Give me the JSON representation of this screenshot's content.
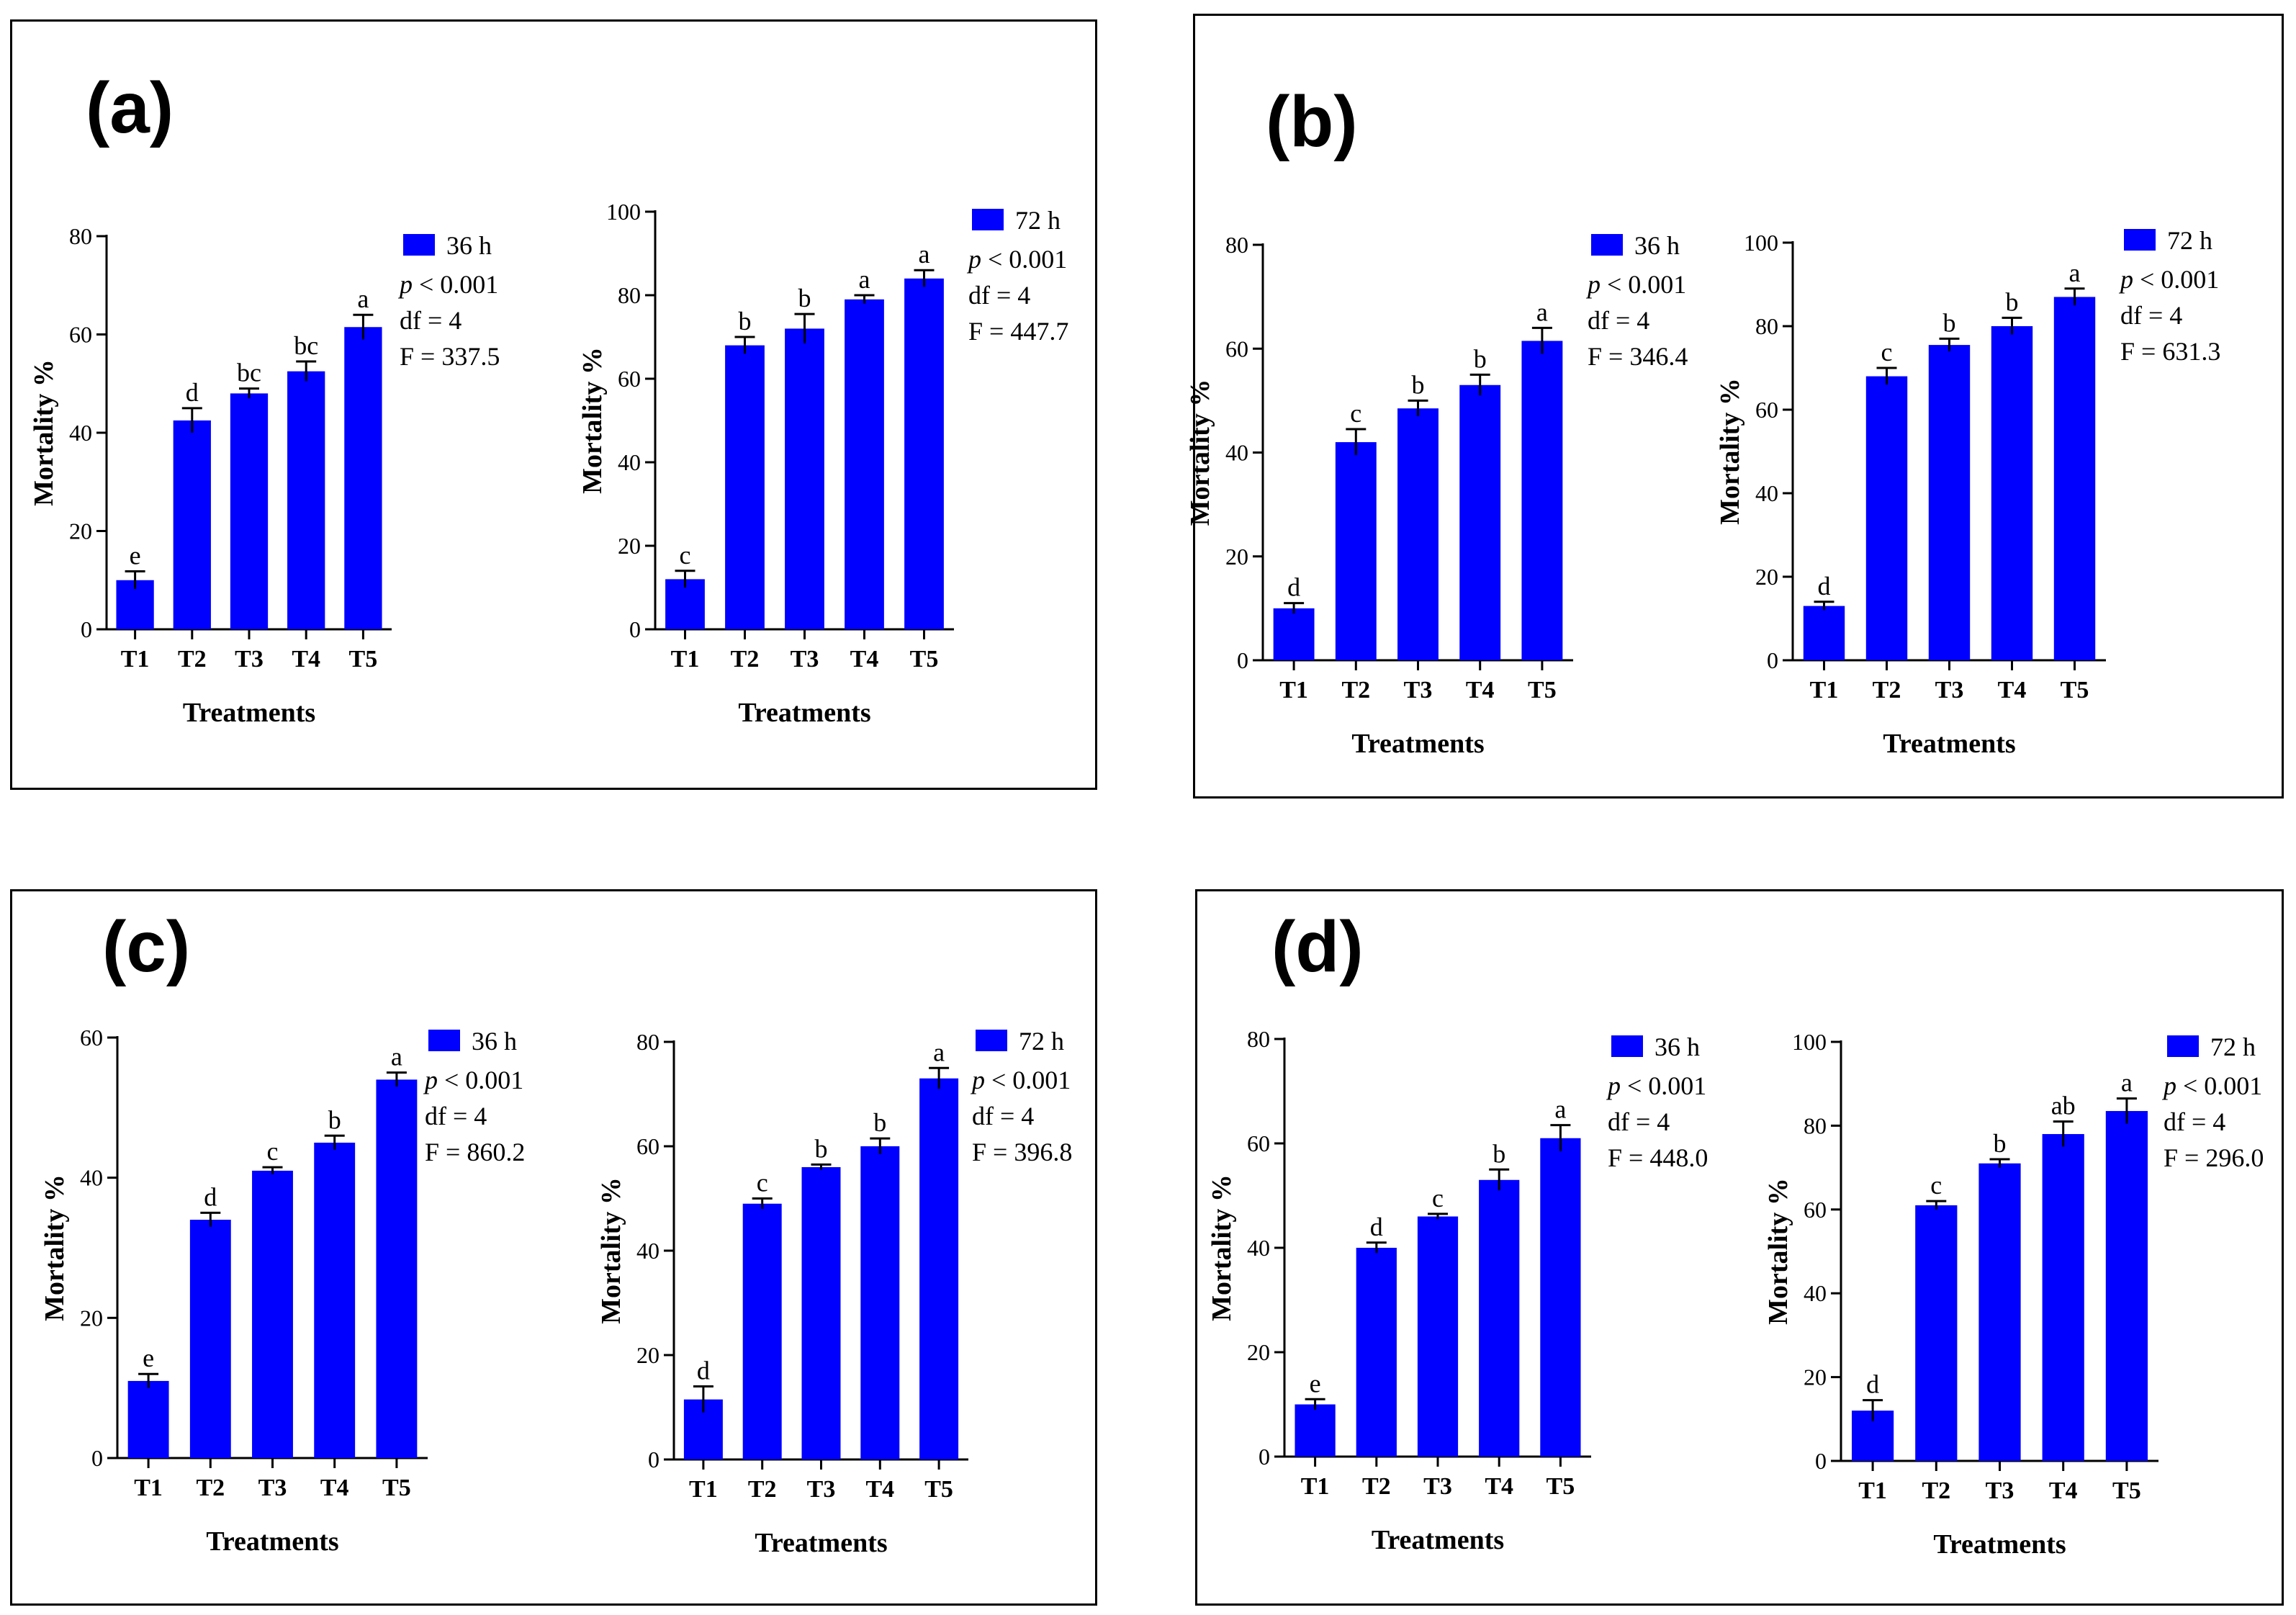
{
  "colors": {
    "bar": "#0000FF",
    "axis": "#000000"
  },
  "panels": [
    {
      "label": "(a)"
    },
    {
      "label": "(b)"
    },
    {
      "label": "(c)"
    },
    {
      "label": "(d)"
    }
  ],
  "chart_data": [
    {
      "panel": "(a)",
      "type": "bar",
      "title": "",
      "xlabel": "Treatments",
      "ylabel": "Mortality %",
      "categories": [
        "T1",
        "T2",
        "T3",
        "T4",
        "T5"
      ],
      "ylim": [
        0,
        80
      ],
      "yticks": [
        "0",
        "20",
        "40",
        "60",
        "80"
      ],
      "legend": "36 h",
      "values": [
        10,
        42.5,
        48,
        52.5,
        61.5
      ],
      "errors": [
        1.8,
        2.5,
        1,
        2,
        2.5
      ],
      "letters": [
        "e",
        "d",
        "bc",
        "bc",
        "a"
      ],
      "stats": {
        "p": "p",
        "p_rest": " < 0.001",
        "df": "df = 4",
        "f": " F = 337.5"
      }
    },
    {
      "panel": "(a)",
      "type": "bar",
      "title": "",
      "xlabel": "Treatments",
      "ylabel": "Mortality %",
      "categories": [
        "T1",
        "T2",
        "T3",
        "T4",
        "T5"
      ],
      "ylim": [
        0,
        100
      ],
      "yticks": [
        "0",
        "20",
        "40",
        "60",
        "80",
        "100"
      ],
      "legend": "72 h",
      "values": [
        12,
        68,
        72,
        79,
        84
      ],
      "errors": [
        2,
        2,
        3.5,
        1,
        2
      ],
      "letters": [
        "c",
        "b",
        "b",
        "a",
        "a"
      ],
      "stats": {
        "p": "p",
        "p_rest": " < 0.001",
        "df": "df = 4",
        "f": "F = 447.7"
      }
    },
    {
      "panel": "(b)",
      "type": "bar",
      "title": "",
      "xlabel": "Treatments",
      "ylabel": "Mortality %",
      "categories": [
        "T1",
        "T2",
        "T3",
        "T4",
        "T5"
      ],
      "ylim": [
        0,
        80
      ],
      "yticks": [
        "0",
        "20",
        "40",
        "60",
        "80"
      ],
      "legend": "36 h",
      "values": [
        10,
        42,
        48.5,
        53,
        61.5
      ],
      "errors": [
        1,
        2.5,
        1.5,
        2,
        2.5
      ],
      "letters": [
        "d",
        "c",
        "b",
        "b",
        "a"
      ],
      "stats": {
        "p": "p",
        "p_rest": " < 0.001",
        "df": "df = 4",
        "f": "F = 346.4"
      }
    },
    {
      "panel": "(b)",
      "type": "bar",
      "title": "",
      "xlabel": "Treatments",
      "ylabel": "Mortality %",
      "categories": [
        "T1",
        "T2",
        "T3",
        "T4",
        "T5"
      ],
      "ylim": [
        0,
        100
      ],
      "yticks": [
        "0",
        "20",
        "40",
        "60",
        "80",
        "100"
      ],
      "legend": "72 h",
      "values": [
        13,
        68,
        75.5,
        80,
        87
      ],
      "errors": [
        1,
        2,
        1.5,
        2,
        2
      ],
      "letters": [
        "d",
        "c",
        "b",
        "b",
        "a"
      ],
      "stats": {
        "p": "p",
        "p_rest": " < 0.001",
        "df": "df = 4",
        "f": "F = 631.3"
      }
    },
    {
      "panel": "(c)",
      "type": "bar",
      "title": "",
      "xlabel": "Treatments",
      "ylabel": "Mortality %",
      "categories": [
        "T1",
        "T2",
        "T3",
        "T4",
        "T5"
      ],
      "ylim": [
        0,
        60
      ],
      "yticks": [
        "0",
        "20",
        "40",
        "60"
      ],
      "legend": "36 h",
      "values": [
        11,
        34,
        41,
        45,
        54
      ],
      "errors": [
        1,
        1,
        0.5,
        1,
        1
      ],
      "letters": [
        "e",
        "d",
        "c",
        "b",
        "a"
      ],
      "stats": {
        "p": "p",
        "p_rest": " < 0.001",
        "df": " df = 4",
        "f": "F = 860.2"
      }
    },
    {
      "panel": "(c)",
      "type": "bar",
      "title": "",
      "xlabel": "Treatments",
      "ylabel": "Mortality %",
      "categories": [
        "T1",
        "T2",
        "T3",
        "T4",
        "T5"
      ],
      "ylim": [
        0,
        80
      ],
      "yticks": [
        "0",
        "20",
        "40",
        "60",
        "80"
      ],
      "legend": "72 h",
      "values": [
        11.5,
        49,
        56,
        60,
        73
      ],
      "errors": [
        2.5,
        1,
        0.5,
        1.5,
        2
      ],
      "letters": [
        "d",
        "c",
        "b",
        "b",
        "a"
      ],
      "stats": {
        "p": "p",
        "p_rest": " < 0.001",
        "df": "df = 4",
        "f": "F = 396.8"
      }
    },
    {
      "panel": "(d)",
      "type": "bar",
      "title": "",
      "xlabel": "Treatments",
      "ylabel": "Mortality %",
      "categories": [
        "T1",
        "T2",
        "T3",
        "T4",
        "T5"
      ],
      "ylim": [
        0,
        80
      ],
      "yticks": [
        "0",
        "20",
        "40",
        "60",
        "80"
      ],
      "legend": "36 h",
      "values": [
        10,
        40,
        46,
        53,
        61
      ],
      "errors": [
        1,
        1,
        0.5,
        2,
        2.5
      ],
      "letters": [
        "e",
        "d",
        "c",
        "b",
        "a"
      ],
      "stats": {
        "p": "p",
        "p_rest": " < 0.001",
        "df": "df = 4",
        "f": "F = 448.0"
      }
    },
    {
      "panel": "(d)",
      "type": "bar",
      "title": "",
      "xlabel": "Treatments",
      "ylabel": "Mortality %",
      "categories": [
        "T1",
        "T2",
        "T3",
        "T4",
        "T5"
      ],
      "ylim": [
        0,
        100
      ],
      "yticks": [
        "0",
        "20",
        "40",
        "60",
        "80",
        "100"
      ],
      "legend": "72 h",
      "values": [
        12,
        61,
        71,
        78,
        83.5
      ],
      "errors": [
        2.5,
        1,
        1,
        3,
        3
      ],
      "letters": [
        "d",
        "c",
        "b",
        "ab",
        "a"
      ],
      "stats": {
        "p": "p",
        "p_rest": " < 0.001",
        "df": "df = 4",
        "f": "F = 296.0"
      }
    }
  ]
}
